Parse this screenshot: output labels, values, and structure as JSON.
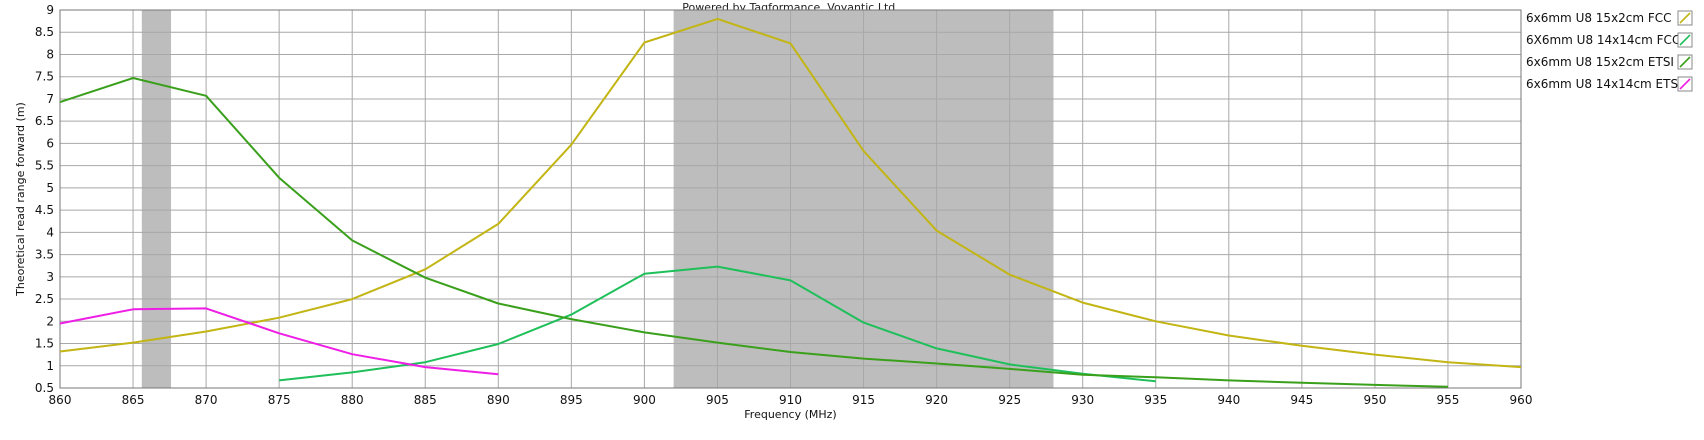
{
  "chart_data": {
    "type": "line",
    "title": "Powered by Tagformance, Voyantic Ltd.",
    "xlabel": "Frequency (MHz)",
    "ylabel": "Theoretical read range forward (m)",
    "xlim": [
      860,
      960
    ],
    "ylim": [
      0.5,
      9
    ],
    "x_ticks": [
      "860",
      "865",
      "870",
      "875",
      "880",
      "885",
      "890",
      "895",
      "900",
      "905",
      "910",
      "915",
      "920",
      "925",
      "930",
      "935",
      "940",
      "945",
      "950",
      "955",
      "960"
    ],
    "y_ticks": [
      "0.5",
      "1",
      "1.5",
      "2",
      "2.5",
      "3",
      "3.5",
      "4",
      "4.5",
      "5",
      "5.5",
      "6",
      "6.5",
      "7",
      "7.5",
      "8",
      "8.5",
      "9"
    ],
    "grid": true,
    "legend_position": "right",
    "shaded_bands": [
      {
        "x_start": 865.6,
        "x_end": 867.6
      },
      {
        "x_start": 902,
        "x_end": 928
      }
    ],
    "series": [
      {
        "name": "6x6mm U8 15x2cm FCC",
        "color": "#c2b514",
        "x": [
          860,
          865,
          870,
          875,
          880,
          885,
          890,
          895,
          900,
          905,
          910,
          915,
          920,
          925,
          930,
          935,
          940,
          945,
          950,
          955,
          960
        ],
        "y": [
          1.32,
          1.52,
          1.77,
          2.08,
          2.5,
          3.17,
          4.19,
          5.97,
          8.27,
          8.8,
          8.25,
          5.83,
          4.04,
          3.05,
          2.42,
          2.0,
          1.68,
          1.45,
          1.25,
          1.08,
          0.97
        ]
      },
      {
        "name": "6X6mm U8 14x14cm FCC",
        "color": "#1fbf5a",
        "x": [
          875,
          880,
          885,
          890,
          895,
          900,
          905,
          910,
          915,
          920,
          925,
          930,
          935
        ],
        "y": [
          0.67,
          0.85,
          1.08,
          1.49,
          2.15,
          3.07,
          3.23,
          2.92,
          1.97,
          1.39,
          1.03,
          0.82,
          0.65
        ]
      },
      {
        "name": "6x6mm U8 15x2cm ETSI",
        "color": "#3aa01c",
        "x": [
          860,
          865,
          870,
          875,
          880,
          885,
          890,
          895,
          900,
          905,
          910,
          915,
          920,
          925,
          930,
          935,
          940,
          945,
          950,
          955
        ],
        "y": [
          6.93,
          7.47,
          7.07,
          5.23,
          3.82,
          2.98,
          2.4,
          2.05,
          1.75,
          1.52,
          1.31,
          1.16,
          1.05,
          0.93,
          0.8,
          0.74,
          0.67,
          0.62,
          0.57,
          0.53
        ]
      },
      {
        "name": "6x6mm U8 14x14cm ETS",
        "color": "#ee1ee6",
        "x": [
          860,
          865,
          870,
          875,
          880,
          885,
          890
        ],
        "y": [
          1.95,
          2.27,
          2.29,
          1.73,
          1.26,
          0.97,
          0.81
        ]
      }
    ]
  }
}
